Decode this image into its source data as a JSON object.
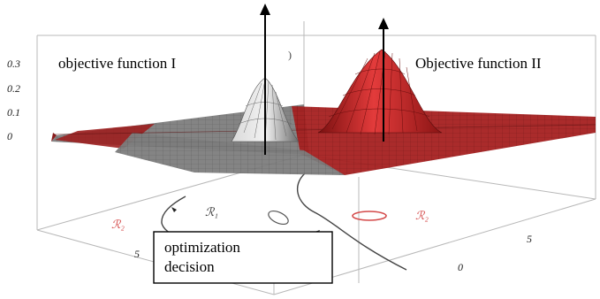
{
  "labels": {
    "objective_1": "objective function I",
    "objective_2": "Objective function II",
    "decision": [
      "optimization",
      "decision"
    ]
  },
  "regions": {
    "r1": "ℛ₁",
    "r2_left": "ℛ₂",
    "r2_right": "ℛ₂"
  },
  "ticks": {
    "z": [
      "0.3",
      "0.2",
      "0.1",
      "0"
    ],
    "left_axis": "5",
    "right_axis": [
      "5",
      "0"
    ]
  },
  "colors": {
    "red_surface": "#cc2222",
    "gray_surface": "#8a8a8a",
    "region_red": "#d44a4a",
    "region_dark": "#333333"
  }
}
